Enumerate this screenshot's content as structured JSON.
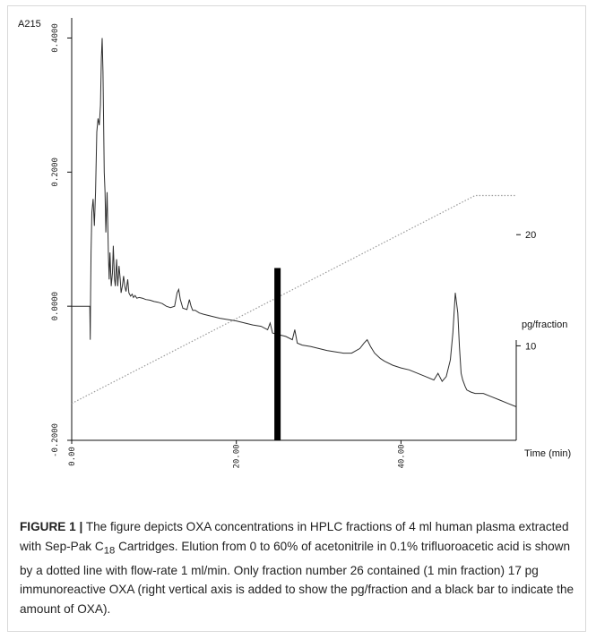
{
  "chart_data": {
    "type": "line",
    "ylabel": "A215",
    "xlabel": "Time (min)",
    "y_right_label": "pg/fraction",
    "xlim": [
      0,
      54
    ],
    "ylim": [
      -0.2,
      0.43
    ],
    "x_ticks": [
      0,
      20,
      40
    ],
    "x_tick_labels": [
      "0.00",
      "20.00",
      "40.00"
    ],
    "y_ticks": [
      -0.2,
      0.0,
      0.2,
      0.4
    ],
    "y_tick_labels": [
      "-0.2000",
      "0.0000",
      "0.2000",
      "0.4000"
    ],
    "y_right_ticks": [
      10,
      20
    ],
    "y_right_tick_labels": [
      "10",
      "20"
    ],
    "y_right_range": [
      1.5,
      39.5
    ],
    "series": [
      {
        "kind": "absorbance",
        "x": [
          0,
          2.2,
          2.25,
          2.3,
          2.35,
          2.45,
          2.6,
          2.75,
          2.9,
          3.05,
          3.2,
          3.35,
          3.5,
          3.6,
          3.7,
          3.8,
          3.95,
          4.05,
          4.15,
          4.3,
          4.45,
          4.55,
          4.65,
          4.8,
          4.95,
          5.05,
          5.2,
          5.3,
          5.45,
          5.6,
          5.75,
          5.9,
          6.0,
          6.15,
          6.3,
          6.45,
          6.6,
          6.8,
          6.95,
          7.15,
          7.35,
          7.5,
          7.7,
          7.9,
          8.2,
          8.6,
          9.0,
          9.5,
          10.0,
          10.5,
          11.0,
          11.5,
          12.0,
          12.5,
          12.8,
          13.0,
          13.2,
          13.5,
          14.0,
          14.3,
          14.5,
          14.7,
          15.0,
          15.5,
          16.0,
          17.0,
          18.0,
          19.0,
          20.0,
          21.0,
          22.0,
          23.0,
          23.8,
          24.1,
          24.4,
          25.0,
          26.0,
          26.8,
          27.1,
          27.4,
          28.0,
          29.0,
          30.0,
          31.0,
          32.0,
          33.0,
          34.0,
          35.0,
          35.5,
          35.9,
          36.3,
          36.8,
          37.5,
          38.0,
          39.0,
          40.0,
          41.0,
          42.0,
          43.0,
          44.0,
          44.5,
          45.0,
          45.5,
          46.0,
          46.3,
          46.6,
          46.9,
          47.1,
          47.3,
          47.5,
          47.8,
          48.0,
          48.5,
          49.0,
          50.0,
          51.0,
          52.0,
          53.0,
          54.0
        ],
        "y": [
          0.0,
          0.0,
          -0.05,
          0.02,
          0.08,
          0.14,
          0.16,
          0.12,
          0.17,
          0.26,
          0.28,
          0.27,
          0.3,
          0.37,
          0.4,
          0.35,
          0.2,
          0.17,
          0.11,
          0.17,
          0.08,
          0.04,
          0.08,
          0.03,
          0.05,
          0.09,
          0.04,
          0.03,
          0.07,
          0.03,
          0.06,
          0.04,
          0.02,
          0.03,
          0.045,
          0.03,
          0.022,
          0.04,
          0.02,
          0.015,
          0.018,
          0.013,
          0.016,
          0.012,
          0.013,
          0.012,
          0.01,
          0.009,
          0.007,
          0.006,
          0.004,
          0.0,
          -0.002,
          0.0,
          0.02,
          0.025,
          0.01,
          -0.003,
          -0.005,
          0.01,
          0.0,
          -0.006,
          -0.006,
          -0.01,
          -0.012,
          -0.015,
          -0.018,
          -0.02,
          -0.022,
          -0.025,
          -0.028,
          -0.03,
          -0.035,
          -0.025,
          -0.04,
          -0.042,
          -0.045,
          -0.05,
          -0.035,
          -0.055,
          -0.058,
          -0.06,
          -0.063,
          -0.066,
          -0.068,
          -0.07,
          -0.07,
          -0.063,
          -0.055,
          -0.05,
          -0.06,
          -0.07,
          -0.078,
          -0.082,
          -0.088,
          -0.092,
          -0.095,
          -0.1,
          -0.105,
          -0.11,
          -0.1,
          -0.112,
          -0.105,
          -0.08,
          -0.04,
          0.02,
          -0.01,
          -0.06,
          -0.1,
          -0.11,
          -0.12,
          -0.125,
          -0.128,
          -0.13,
          -0.13,
          -0.135,
          -0.14,
          -0.145,
          -0.15
        ]
      },
      {
        "kind": "acetonitrile gradient",
        "x": [
          0,
          49,
          54
        ],
        "y": [
          -0.145,
          0.165,
          0.165
        ]
      }
    ],
    "bars": [
      {
        "x": 25,
        "value": 17
      }
    ],
    "grid": false,
    "legend": "none"
  },
  "caption": {
    "label": "FIGURE 1 |",
    "text_before_subscript": "The figure depicts OXA concentrations in HPLC fractions of 4 ml human plasma extracted with Sep-Pak C",
    "subscript": "18",
    "text_after_subscript": " Cartridges. Elution from 0 to 60% of acetonitrile in 0.1% trifluoroacetic acid is shown by a dotted line with flow-rate 1 ml/min. Only fraction number 26 contained (1 min fraction) 17 pg immunoreactive OXA (right vertical axis is added to show the pg/fraction and a black bar to indicate the amount of OXA)."
  },
  "colors": {
    "trace": "#2e2e2e",
    "gradient": "#9a9a9a",
    "bar": "#000000",
    "frame": "#d9d9d9"
  }
}
